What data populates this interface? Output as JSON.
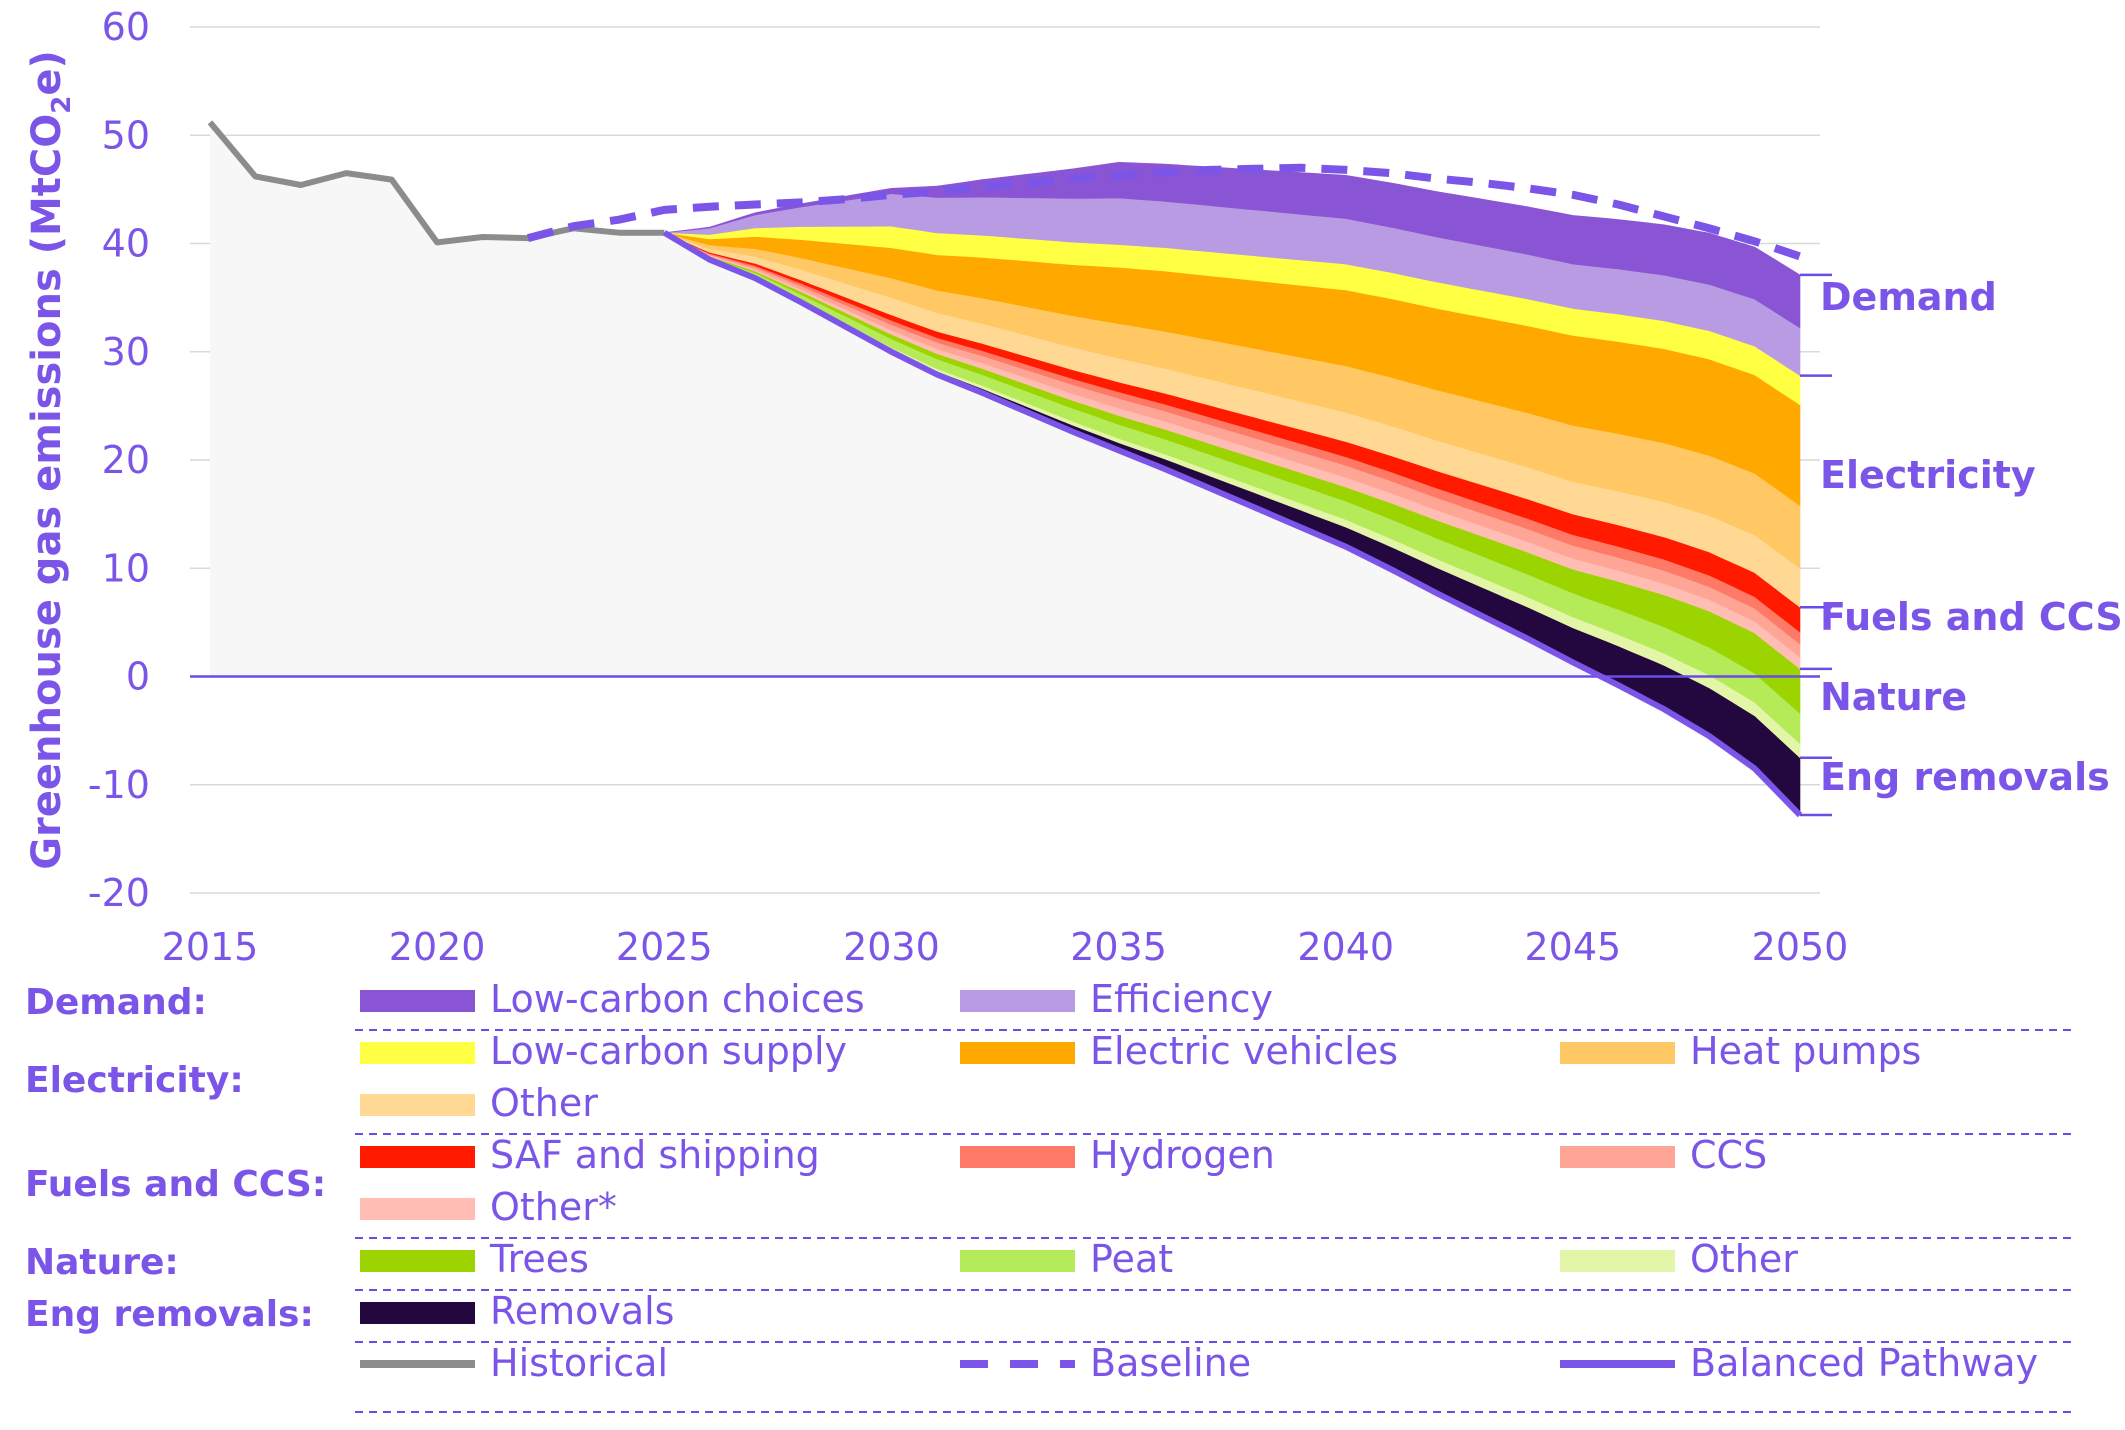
{
  "chart_data": {
    "type": "area",
    "title": "",
    "ylabel": "Greenhouse gas emissions (MtCO2e)",
    "ylabel_parts": {
      "main": "Greenhouse gas emissions (MtCO",
      "sub": "2",
      "tail": "e)"
    },
    "xlim": [
      2015,
      2050
    ],
    "ylim": [
      -20,
      60
    ],
    "x_ticks": [
      "2015",
      "2020",
      "2025",
      "2030",
      "2035",
      "2040",
      "2045",
      "2050"
    ],
    "y_ticks": [
      "60",
      "50",
      "40",
      "30",
      "20",
      "10",
      "0",
      "-10",
      "-20"
    ],
    "colors": {
      "axis_text": "#7b55e8",
      "zero_line": "#6a4ce6",
      "grid": "#d9d9d9",
      "below_area": "#f7f7f7",
      "historical": "#8c8c8c",
      "baseline": "#7b55e8",
      "balanced": "#7b55e8"
    },
    "historical": {
      "x": [
        2015,
        2016,
        2017,
        2018,
        2019,
        2020,
        2021,
        2022,
        2023,
        2024,
        2025
      ],
      "y": [
        51.2,
        46.2,
        45.4,
        46.5,
        45.9,
        40.1,
        40.6,
        40.5,
        41.4,
        41.0,
        41.0
      ]
    },
    "baseline": {
      "x": [
        2022,
        2023,
        2024,
        2025,
        2026,
        2027,
        2028,
        2029,
        2030,
        2031,
        2032,
        2033,
        2034,
        2035,
        2036,
        2037,
        2038,
        2039,
        2040,
        2041,
        2042,
        2043,
        2044,
        2045,
        2046,
        2047,
        2048,
        2049,
        2050
      ],
      "y": [
        40.5,
        41.6,
        42.2,
        43.1,
        43.4,
        43.6,
        43.8,
        44.1,
        44.5,
        44.8,
        45.2,
        45.6,
        46.0,
        46.3,
        46.6,
        46.8,
        46.9,
        47.0,
        46.8,
        46.5,
        46.0,
        45.6,
        45.1,
        44.5,
        43.6,
        42.5,
        41.4,
        40.2,
        38.8
      ]
    },
    "balanced": {
      "x": [
        2025,
        2026,
        2027,
        2028,
        2029,
        2030,
        2031,
        2032,
        2033,
        2034,
        2035,
        2036,
        2037,
        2038,
        2039,
        2040,
        2041,
        2042,
        2043,
        2044,
        2045,
        2046,
        2047,
        2048,
        2049,
        2050
      ],
      "y": [
        41.0,
        38.5,
        36.8,
        34.6,
        32.3,
        30.0,
        27.9,
        26.2,
        24.4,
        22.6,
        20.9,
        19.2,
        17.4,
        15.6,
        13.8,
        12.0,
        9.9,
        7.7,
        5.6,
        3.5,
        1.3,
        -0.8,
        -3.0,
        -5.5,
        -8.5,
        -12.8
      ]
    },
    "stack_x": [
      2025,
      2030,
      2035,
      2040,
      2045,
      2050
    ],
    "series": [
      {
        "name": "Removals",
        "group": "Eng removals",
        "color": "#22083f",
        "values": [
          0,
          0.2,
          0.7,
          1.8,
          3.2,
          5.3
        ]
      },
      {
        "name": "Other",
        "group": "Nature",
        "color": "#e3f5a6",
        "values": [
          0,
          0.2,
          0.4,
          0.7,
          1.0,
          1.3
        ]
      },
      {
        "name": "Peat",
        "group": "Nature",
        "color": "#b5ea58",
        "values": [
          0,
          0.8,
          1.3,
          1.7,
          2.2,
          2.8
        ]
      },
      {
        "name": "Trees",
        "group": "Nature",
        "color": "#9bd400",
        "values": [
          0,
          0.4,
          0.8,
          1.3,
          2.2,
          4.1
        ]
      },
      {
        "name": "Other*",
        "group": "Fuels and CCS",
        "color": "#ffbdb3",
        "values": [
          0,
          0.4,
          0.7,
          0.9,
          1.0,
          1.1
        ]
      },
      {
        "name": "CCS",
        "group": "Fuels and CCS",
        "color": "#ffa596",
        "values": [
          0,
          0.5,
          0.9,
          1.1,
          1.2,
          1.2
        ]
      },
      {
        "name": "Hydrogen",
        "group": "Fuels and CCS",
        "color": "#ff7a66",
        "values": [
          0,
          0.4,
          0.6,
          0.8,
          1.0,
          1.1
        ]
      },
      {
        "name": "SAF and shipping",
        "group": "Fuels and CCS",
        "color": "#ff1a00",
        "values": [
          0,
          0.5,
          0.9,
          1.4,
          1.9,
          2.3
        ]
      },
      {
        "name": "Other",
        "group": "Electricity",
        "color": "#ffd993",
        "values": [
          0,
          1.6,
          2.2,
          2.7,
          3.0,
          3.6
        ]
      },
      {
        "name": "Heat pumps",
        "group": "Electricity",
        "color": "#ffc865",
        "values": [
          0,
          1.8,
          3.2,
          4.3,
          5.2,
          5.8
        ]
      },
      {
        "name": "Electric vehicles",
        "group": "Electricity",
        "color": "#ffa800",
        "values": [
          0,
          2.8,
          5.2,
          7.0,
          8.3,
          9.3
        ]
      },
      {
        "name": "Low-carbon supply",
        "group": "Electricity",
        "color": "#ffff44",
        "values": [
          0,
          2.0,
          2.1,
          2.4,
          2.5,
          2.7
        ]
      },
      {
        "name": "Efficiency",
        "group": "Demand",
        "color": "#b89be3",
        "values": [
          0,
          3.0,
          4.3,
          4.2,
          4.1,
          4.4
        ]
      },
      {
        "name": "Low-carbon choices",
        "group": "Demand",
        "color": "#8a55d4",
        "values": [
          0,
          0.5,
          3.3,
          4.0,
          4.5,
          4.9
        ]
      }
    ],
    "right_labels": [
      "Demand",
      "Electricity",
      "Fuels and CCS",
      "Nature",
      "Eng removals"
    ],
    "legend": {
      "groups": [
        {
          "label": "Demand:",
          "items": [
            {
              "name": "Low-carbon choices",
              "color": "#8a55d4"
            },
            {
              "name": "Efficiency",
              "color": "#b89be3"
            }
          ]
        },
        {
          "label": "Electricity:",
          "items": [
            {
              "name": "Low-carbon supply",
              "color": "#ffff44"
            },
            {
              "name": "Electric vehicles",
              "color": "#ffa800"
            },
            {
              "name": "Heat pumps",
              "color": "#ffc865"
            },
            {
              "name": "Other",
              "color": "#ffd993"
            }
          ]
        },
        {
          "label": "Fuels and CCS:",
          "items": [
            {
              "name": "SAF and shipping",
              "color": "#ff1a00"
            },
            {
              "name": "Hydrogen",
              "color": "#ff7a66"
            },
            {
              "name": "CCS",
              "color": "#ffa596"
            },
            {
              "name": "Other*",
              "color": "#ffbdb3"
            }
          ]
        },
        {
          "label": "Nature:",
          "items": [
            {
              "name": "Trees",
              "color": "#9bd400"
            },
            {
              "name": "Peat",
              "color": "#b5ea58"
            },
            {
              "name": "Other",
              "color": "#e3f5a6"
            }
          ]
        },
        {
          "label": "Eng removals:",
          "items": [
            {
              "name": "Removals",
              "color": "#22083f"
            }
          ]
        }
      ],
      "lines": [
        {
          "name": "Historical",
          "color": "#8c8c8c",
          "style": "solid"
        },
        {
          "name": "Baseline",
          "color": "#7b55e8",
          "style": "dashed"
        },
        {
          "name": "Balanced Pathway",
          "color": "#7b55e8",
          "style": "solid"
        }
      ]
    }
  }
}
